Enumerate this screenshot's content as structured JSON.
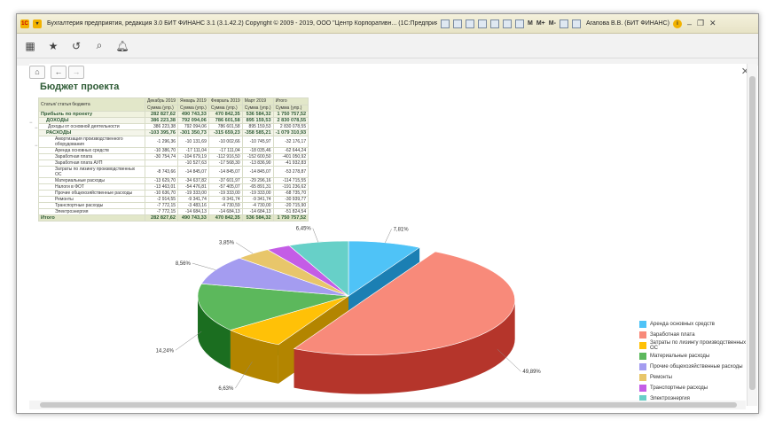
{
  "window": {
    "title": "Бухгалтерия предприятия, редакция 3.0  БИТ ФИНАНС 3.1 (3.1.42.2) Copyright © 2009 - 2019, ООО \"Центр Корпоративн...  (1С:Предприятие)",
    "user": "Агапова В.В. (БИТ ФИНАНС)",
    "m_buttons": [
      "M",
      "M+",
      "M-"
    ]
  },
  "report": {
    "title": "Бюджет проекта",
    "header": {
      "col0": "Статья/ статья бюджета",
      "months": [
        "Декабрь 2019",
        "Январь 2019",
        "Февраль 2019",
        "Март 2019",
        "Итого"
      ],
      "sub": "Сумма (упр.)"
    },
    "rows": [
      {
        "label": "Прибыль по проекту",
        "vals": [
          "282 827,62",
          "490 743,33",
          "470 842,35",
          "536 584,32",
          "1 750 757,52"
        ],
        "cls": "lvl0"
      },
      {
        "label": "ДОХОДЫ",
        "vals": [
          "386 223,38",
          "792 094,06",
          "786 601,58",
          "895 159,53",
          "2 830 078,55"
        ],
        "cls": "lvl1"
      },
      {
        "label": "Доходы от основной деятельности",
        "vals": [
          "386 223,38",
          "792 094,06",
          "786 601,58",
          "895 159,53",
          "2 830 078,55"
        ],
        "cls": "lvl2"
      },
      {
        "label": "РАСХОДЫ",
        "vals": [
          "-103 395,76",
          "-301 350,73",
          "-315 659,23",
          "-358 585,21",
          "-1 079 310,93"
        ],
        "cls": "lvl1"
      },
      {
        "label": "Амортизация производственного оборудования",
        "vals": [
          "-1 296,36",
          "-10 131,69",
          "-10 002,66",
          "-10 745,97",
          "-32 176,17"
        ],
        "cls": "lvl3"
      },
      {
        "label": "Аренда основных средств",
        "vals": [
          "-10 386,70",
          "-17 111,04",
          "-17 111,04",
          "-18 035,46",
          "-62 644,24"
        ],
        "cls": "lvl3"
      },
      {
        "label": "Заработная плата",
        "vals": [
          "-30 754,74",
          "-104 679,19",
          "-112 916,50",
          "-152 600,50",
          "-401 050,92"
        ],
        "cls": "lvl3"
      },
      {
        "label": "Заработная плата АУП",
        "vals": [
          "",
          "-10 527,63",
          "-17 568,30",
          "-13 836,90",
          "-41 932,83"
        ],
        "cls": "lvl3"
      },
      {
        "label": "Затраты по лизингу производственных ОС",
        "vals": [
          "-8 743,66",
          "-14 845,07",
          "-14 845,07",
          "-14 845,07",
          "-53 278,87"
        ],
        "cls": "lvl3"
      },
      {
        "label": "Материальные расходы",
        "vals": [
          "-13 629,70",
          "-34 637,82",
          "-37 601,97",
          "-29 296,16",
          "-114 715,55"
        ],
        "cls": "lvl3"
      },
      {
        "label": "Налоги в ФОТ",
        "vals": [
          "-13 463,01",
          "-54 476,81",
          "-57 405,07",
          "-65 891,31",
          "-191 236,62"
        ],
        "cls": "lvl3"
      },
      {
        "label": "Прочие общехозяйственные расходы",
        "vals": [
          "-10 636,70",
          "-19 333,00",
          "-19 333,00",
          "-19 333,00",
          "-68 735,70"
        ],
        "cls": "lvl3"
      },
      {
        "label": "Ремонты",
        "vals": [
          "-2 914,55",
          "-9 341,74",
          "-9 341,74",
          "-9 341,74",
          "-30 939,77"
        ],
        "cls": "lvl3"
      },
      {
        "label": "Транспортные расходы",
        "vals": [
          "-7 772,15",
          "-3 483,16",
          "-4 730,59",
          "-4 730,00",
          "-20 715,90"
        ],
        "cls": "lvl3"
      },
      {
        "label": "Электроэнергия",
        "vals": [
          "-7 772,15",
          "-14 684,13",
          "-14 684,13",
          "-14 684,13",
          "-51 824,54"
        ],
        "cls": "lvl3"
      }
    ],
    "total": {
      "label": "Итого",
      "vals": [
        "282 827,62",
        "490 743,33",
        "470 842,35",
        "536 584,32",
        "1 750 757,52"
      ]
    }
  },
  "chart_data": {
    "type": "pie",
    "slices": [
      {
        "name": "Аренда основных средств",
        "value": 7.81,
        "label": "7,81%",
        "color": "#4fc3f7",
        "side": "#1b7fb3"
      },
      {
        "name": "Заработная плата",
        "value": 49.89,
        "label": "49,89%",
        "color": "#f88a7a",
        "side": "#b5352b"
      },
      {
        "name": "Затраты по лизингу производственных ОС",
        "value": 6.63,
        "label": "6,63%",
        "color": "#ffc107",
        "side": "#b38500"
      },
      {
        "name": "Материальные расходы",
        "value": 14.24,
        "label": "14,24%",
        "color": "#5cb85c",
        "side": "#1b6e20"
      },
      {
        "name": "Прочие общехозяйственные расходы",
        "value": 8.56,
        "label": "8,56%",
        "color": "#a49cf0",
        "side": "#5c52b0"
      },
      {
        "name": "Ремонты",
        "value": 3.85,
        "label": "3,85%",
        "color": "#e8c66a",
        "side": "#a48a2c"
      },
      {
        "name": "Транспортные расходы",
        "value": 2.57,
        "label": "",
        "color": "#c45de6",
        "side": "#7a2b9c"
      },
      {
        "name": "Электроэнергия",
        "value": 6.45,
        "label": "6,45%",
        "color": "#67d0c8",
        "side": "#2a8c85"
      }
    ]
  }
}
